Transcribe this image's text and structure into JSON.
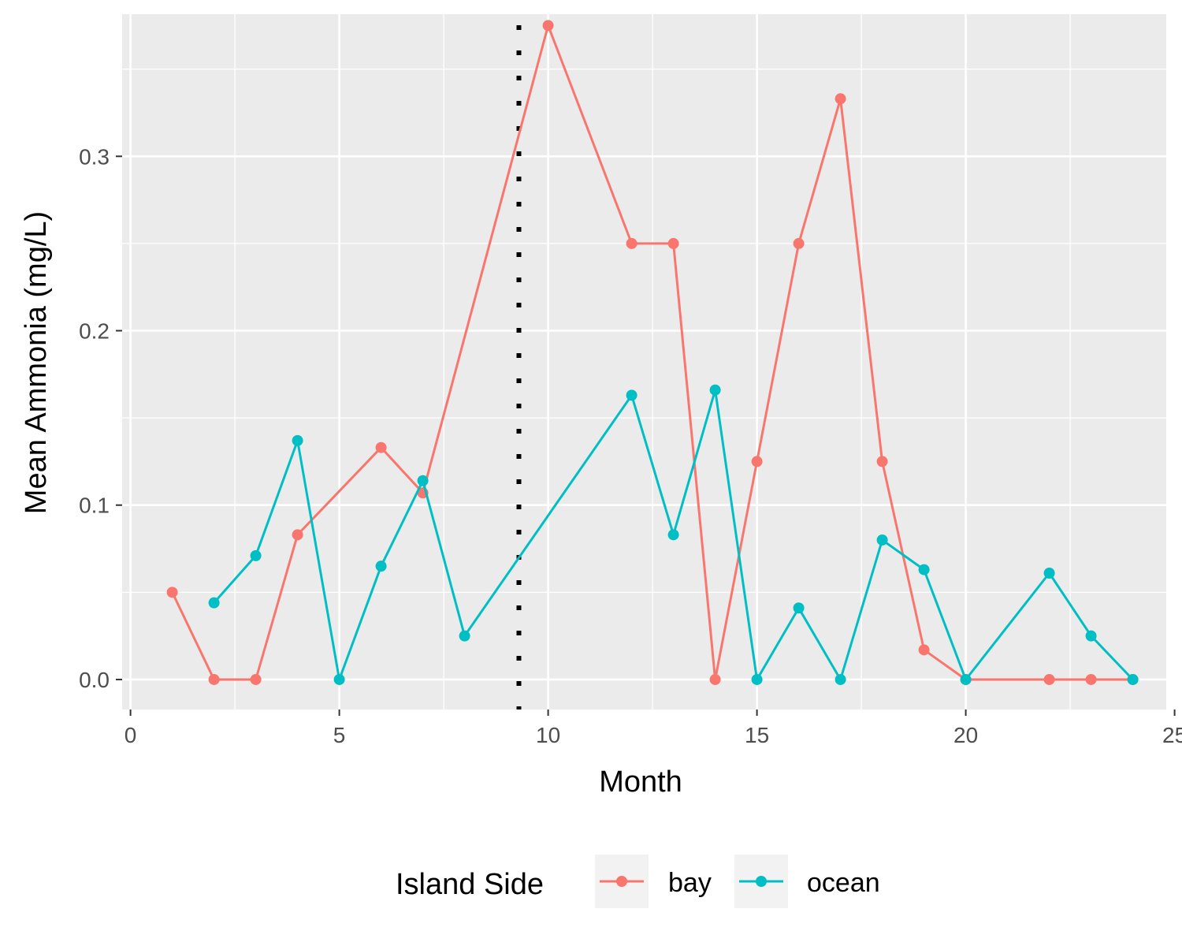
{
  "chart_data": {
    "type": "line",
    "xlabel": "Month",
    "ylabel": "Mean Ammonia (mg/L)",
    "xlim": [
      -0.2,
      24.8
    ],
    "ylim": [
      -0.0172,
      0.3815
    ],
    "x_ticks": [
      0,
      5,
      10,
      15,
      20,
      25
    ],
    "x_tick_labels": [
      "0",
      "5",
      "10",
      "15",
      "20",
      "25"
    ],
    "y_ticks": [
      0.0,
      0.1,
      0.2,
      0.3
    ],
    "y_tick_labels": [
      "0.0",
      "0.1",
      "0.2",
      "0.3"
    ],
    "grid": true,
    "vline": {
      "x": 9.3,
      "style": "dotted"
    },
    "legend": {
      "title": "Island Side",
      "position": "bottom"
    },
    "series": [
      {
        "name": "bay",
        "color": "#F8766D",
        "x": [
          1,
          2,
          3,
          4,
          6,
          7,
          10,
          12,
          13,
          14,
          15,
          16,
          17,
          18,
          19,
          20,
          22,
          23,
          24
        ],
        "y": [
          0.05,
          0.0,
          0.0,
          0.083,
          0.133,
          0.107,
          0.375,
          0.25,
          0.25,
          0.0,
          0.125,
          0.25,
          0.333,
          0.125,
          0.017,
          0.0,
          0.0,
          0.0,
          0.0
        ]
      },
      {
        "name": "ocean",
        "color": "#00BFC4",
        "x": [
          2,
          3,
          4,
          5,
          6,
          7,
          8,
          12,
          13,
          14,
          15,
          16,
          17,
          18,
          19,
          20,
          22,
          23,
          24
        ],
        "y": [
          0.044,
          0.071,
          0.137,
          0.0,
          0.065,
          0.114,
          0.025,
          0.163,
          0.083,
          0.166,
          0.0,
          0.041,
          0.0,
          0.08,
          0.063,
          0.0,
          0.061,
          0.025,
          0.0
        ]
      }
    ]
  }
}
